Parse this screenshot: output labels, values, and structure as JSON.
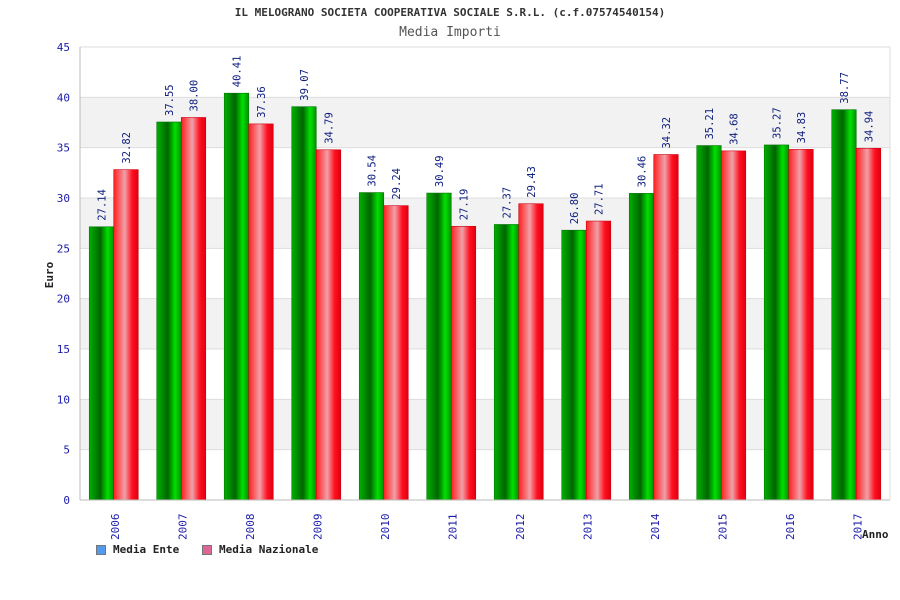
{
  "chart_data": {
    "type": "bar",
    "title": "IL MELOGRANO SOCIETA COOPERATIVA SOCIALE S.R.L. (c.f.07574540154)",
    "subtitle": "Media Importi",
    "xlabel": "Anno",
    "ylabel": "Euro",
    "ylim": [
      0,
      45
    ],
    "yticks": [
      0,
      5,
      10,
      15,
      20,
      25,
      30,
      35,
      40,
      45
    ],
    "categories": [
      "2006",
      "2007",
      "2008",
      "2009",
      "2010",
      "2011",
      "2012",
      "2013",
      "2014",
      "2015",
      "2016",
      "2017"
    ],
    "series": [
      {
        "name": "Media Ente",
        "color": "#00a000",
        "value_labels": [
          "27.14",
          "37.55",
          "40.41",
          "39.07",
          "30.54",
          "30.49",
          "27.37",
          "26.80",
          "30.46",
          "35.21",
          "35.27",
          "38.77"
        ],
        "values": [
          27.14,
          37.55,
          40.41,
          39.07,
          30.54,
          30.49,
          27.37,
          26.8,
          30.46,
          35.21,
          35.27,
          38.77
        ]
      },
      {
        "name": "Media Nazionale",
        "color": "#e8202a",
        "value_labels": [
          "32.82",
          "38.00",
          "37.36",
          "34.79",
          "29.24",
          "27.19",
          "29.43",
          "27.71",
          "34.32",
          "34.68",
          "34.83",
          "34.94"
        ],
        "values": [
          32.82,
          38.0,
          37.36,
          34.79,
          29.24,
          27.19,
          29.43,
          27.71,
          34.32,
          34.68,
          34.83,
          34.94
        ]
      }
    ],
    "legend": [
      {
        "label": "Media Ente",
        "color": "#5599ee"
      },
      {
        "label": "Media Nazionale",
        "color": "#dd6699"
      }
    ],
    "legend_position": "bottom-left"
  }
}
